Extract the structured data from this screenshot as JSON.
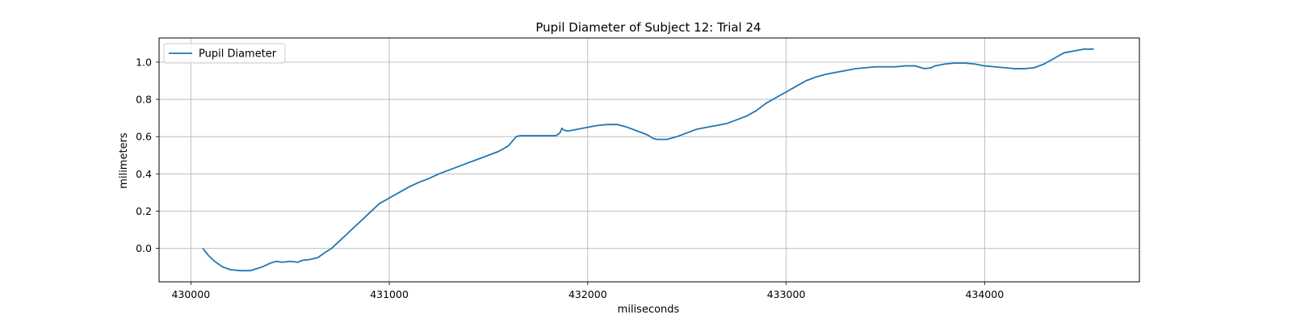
{
  "chart_data": {
    "type": "line",
    "title": "Pupil Diameter of Subject 12: Trial 24",
    "xlabel": "miliseconds",
    "ylabel": "milimeters",
    "xlim": [
      429840,
      434780
    ],
    "ylim": [
      -0.18,
      1.13
    ],
    "xticks": [
      430000,
      431000,
      432000,
      433000,
      434000
    ],
    "yticks": [
      0.0,
      0.2,
      0.4,
      0.6,
      0.8,
      1.0
    ],
    "ytick_labels": [
      "0.0",
      "0.2",
      "0.4",
      "0.6",
      "0.8",
      "1.0"
    ],
    "grid": true,
    "legend_position": "upper-left",
    "series": [
      {
        "name": "Pupil Diameter",
        "color": "#1f77b4",
        "x": [
          430060,
          430090,
          430120,
          430160,
          430200,
          430250,
          430280,
          430300,
          430330,
          430360,
          430400,
          430430,
          430460,
          430500,
          430540,
          430560,
          430600,
          430640,
          430680,
          430710,
          430740,
          430780,
          430820,
          430860,
          430900,
          430950,
          431000,
          431050,
          431100,
          431150,
          431200,
          431250,
          431300,
          431350,
          431400,
          431450,
          431500,
          431550,
          431600,
          431640,
          431660,
          431700,
          431750,
          431800,
          431840,
          431860,
          431870,
          431880,
          431900,
          431950,
          432000,
          432050,
          432100,
          432150,
          432200,
          432250,
          432300,
          432330,
          432350,
          432400,
          432450,
          432500,
          432550,
          432600,
          432650,
          432700,
          432750,
          432800,
          432850,
          432900,
          432950,
          433000,
          433050,
          433100,
          433150,
          433200,
          433250,
          433300,
          433350,
          433400,
          433450,
          433500,
          433550,
          433600,
          433650,
          433680,
          433700,
          433730,
          433750,
          433800,
          433850,
          433900,
          433950,
          434000,
          434050,
          434100,
          434150,
          434200,
          434250,
          434300,
          434350,
          434400,
          434450,
          434500,
          434550
        ],
        "y": [
          0.0,
          -0.04,
          -0.07,
          -0.1,
          -0.115,
          -0.12,
          -0.12,
          -0.12,
          -0.11,
          -0.1,
          -0.08,
          -0.07,
          -0.075,
          -0.07,
          -0.075,
          -0.065,
          -0.06,
          -0.05,
          -0.02,
          0.0,
          0.03,
          0.07,
          0.11,
          0.15,
          0.19,
          0.24,
          0.27,
          0.3,
          0.33,
          0.355,
          0.375,
          0.4,
          0.42,
          0.44,
          0.46,
          0.48,
          0.5,
          0.52,
          0.55,
          0.6,
          0.605,
          0.605,
          0.605,
          0.605,
          0.605,
          0.62,
          0.645,
          0.635,
          0.63,
          0.64,
          0.65,
          0.66,
          0.665,
          0.665,
          0.65,
          0.63,
          0.61,
          0.59,
          0.585,
          0.585,
          0.6,
          0.62,
          0.64,
          0.65,
          0.66,
          0.67,
          0.69,
          0.71,
          0.74,
          0.78,
          0.81,
          0.84,
          0.87,
          0.9,
          0.92,
          0.935,
          0.945,
          0.955,
          0.965,
          0.97,
          0.975,
          0.975,
          0.975,
          0.98,
          0.98,
          0.97,
          0.965,
          0.97,
          0.98,
          0.99,
          0.995,
          0.995,
          0.99,
          0.98,
          0.975,
          0.97,
          0.965,
          0.965,
          0.97,
          0.99,
          1.02,
          1.05,
          1.06,
          1.07,
          1.07
        ]
      }
    ]
  }
}
